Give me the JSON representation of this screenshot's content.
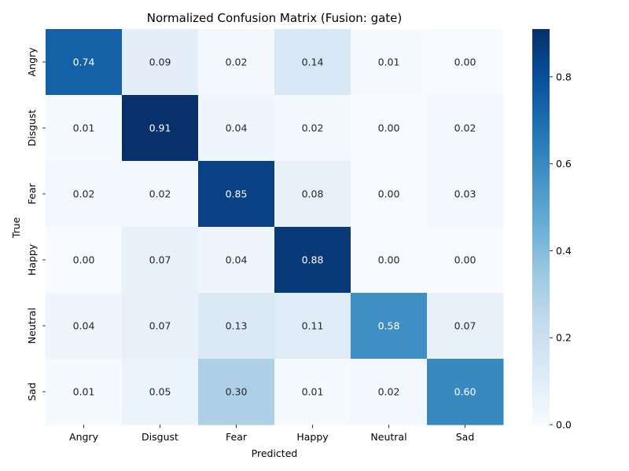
{
  "chart_data": {
    "type": "heatmap",
    "title": "Normalized Confusion Matrix (Fusion: gate)",
    "xlabel": "Predicted",
    "ylabel": "True",
    "x_categories": [
      "Angry",
      "Disgust",
      "Fear",
      "Happy",
      "Neutral",
      "Sad"
    ],
    "y_categories": [
      "Angry",
      "Disgust",
      "Fear",
      "Happy",
      "Neutral",
      "Sad"
    ],
    "values": [
      [
        0.74,
        0.09,
        0.02,
        0.14,
        0.01,
        0.0
      ],
      [
        0.01,
        0.91,
        0.04,
        0.02,
        0.0,
        0.02
      ],
      [
        0.02,
        0.02,
        0.85,
        0.08,
        0.0,
        0.03
      ],
      [
        0.0,
        0.07,
        0.04,
        0.88,
        0.0,
        0.0
      ],
      [
        0.04,
        0.07,
        0.13,
        0.11,
        0.58,
        0.07
      ],
      [
        0.01,
        0.05,
        0.3,
        0.01,
        0.02,
        0.6
      ]
    ],
    "colormap": "Blues",
    "vmin": 0.0,
    "vmax": 0.91,
    "colorbar_ticks": [
      "0.0",
      "0.2",
      "0.4",
      "0.6",
      "0.8"
    ],
    "grid": false
  }
}
